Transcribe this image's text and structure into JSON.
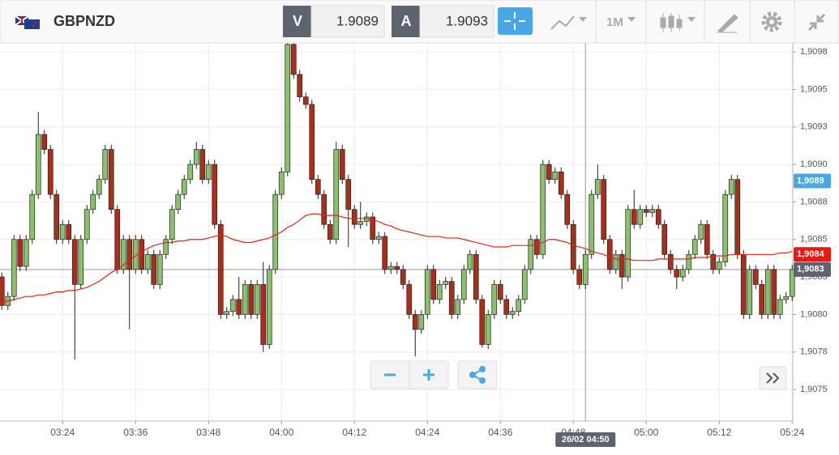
{
  "toolbar": {
    "symbol": "GBPNZD",
    "bid_label": "V",
    "bid": "1.9089",
    "ask_label": "A",
    "ask": "1.9093",
    "timeframe": "1M"
  },
  "chart_data": {
    "type": "candlestick",
    "up_color": "#8cbf6e",
    "down_color": "#a3311c",
    "x": [
      194,
      195,
      196,
      197,
      198,
      199,
      200,
      201,
      202,
      203,
      204,
      205,
      206,
      207,
      208,
      209,
      210,
      211,
      212,
      213,
      214,
      215,
      216,
      217,
      218,
      219,
      220,
      221,
      222,
      223,
      224,
      225,
      226,
      227,
      228,
      229,
      230,
      231,
      232,
      233,
      234,
      235,
      236,
      237,
      238,
      239,
      240,
      241,
      242,
      243,
      244,
      245,
      246,
      247,
      248,
      249,
      250,
      251,
      252,
      253,
      254,
      255,
      256,
      257,
      258,
      259,
      260,
      261,
      262,
      263,
      264,
      265,
      266,
      267,
      268,
      269,
      270,
      271,
      272,
      273,
      274,
      275,
      276,
      277,
      278,
      279,
      280,
      281,
      282,
      283,
      284,
      285,
      286,
      287,
      288,
      289,
      290,
      291,
      292,
      293,
      294,
      295,
      296,
      297,
      298,
      299,
      300,
      301,
      302,
      303,
      304,
      305,
      306,
      307,
      308,
      309,
      310,
      311,
      312,
      313,
      314,
      315,
      316,
      317,
      318,
      319,
      320,
      321,
      322,
      323,
      324
    ],
    "candles": [
      [
        1.90825,
        1.90828,
        1.90803,
        1.90806
      ],
      [
        1.90806,
        1.90815,
        1.90803,
        1.90812
      ],
      [
        1.90812,
        1.90853,
        1.90809,
        1.9085
      ],
      [
        1.9085,
        1.90853,
        1.90829,
        1.90832
      ],
      [
        1.90832,
        1.90853,
        1.90829,
        1.9085
      ],
      [
        1.9085,
        1.90883,
        1.90847,
        1.9088
      ],
      [
        1.9088,
        1.90935,
        1.90877,
        1.9092
      ],
      [
        1.9092,
        1.90923,
        1.90907,
        1.9091
      ],
      [
        1.9091,
        1.90913,
        1.90877,
        1.9088
      ],
      [
        1.9088,
        1.90883,
        1.90847,
        1.9085
      ],
      [
        1.9085,
        1.90863,
        1.90847,
        1.9086
      ],
      [
        1.9086,
        1.90863,
        1.90847,
        1.9085
      ],
      [
        1.9085,
        1.90853,
        1.9077,
        1.9082
      ],
      [
        1.9082,
        1.90853,
        1.90817,
        1.9085
      ],
      [
        1.9085,
        1.90873,
        1.90847,
        1.9087
      ],
      [
        1.9087,
        1.90883,
        1.90867,
        1.9088
      ],
      [
        1.9088,
        1.90893,
        1.90877,
        1.9089
      ],
      [
        1.9089,
        1.90913,
        1.90887,
        1.9091
      ],
      [
        1.9091,
        1.90913,
        1.90867,
        1.9087
      ],
      [
        1.9087,
        1.90873,
        1.90827,
        1.9083
      ],
      [
        1.9083,
        1.90853,
        1.90827,
        1.9085
      ],
      [
        1.9085,
        1.90853,
        1.9079,
        1.9083
      ],
      [
        1.9083,
        1.90853,
        1.90827,
        1.9085
      ],
      [
        1.9085,
        1.90853,
        1.90827,
        1.9083
      ],
      [
        1.9083,
        1.90843,
        1.90827,
        1.9084
      ],
      [
        1.9084,
        1.90843,
        1.90817,
        1.9082
      ],
      [
        1.9082,
        1.90843,
        1.90817,
        1.9084
      ],
      [
        1.9084,
        1.90853,
        1.90837,
        1.9085
      ],
      [
        1.9085,
        1.90873,
        1.90847,
        1.9087
      ],
      [
        1.9087,
        1.90883,
        1.90867,
        1.9088
      ],
      [
        1.9088,
        1.90893,
        1.90877,
        1.9089
      ],
      [
        1.9089,
        1.90903,
        1.90887,
        1.909
      ],
      [
        1.909,
        1.90915,
        1.90897,
        1.9091
      ],
      [
        1.9091,
        1.90913,
        1.90887,
        1.9089
      ],
      [
        1.9089,
        1.90903,
        1.90887,
        1.909
      ],
      [
        1.909,
        1.90903,
        1.90857,
        1.9086
      ],
      [
        1.9086,
        1.90863,
        1.90797,
        1.908
      ],
      [
        1.908,
        1.90805,
        1.90797,
        1.90802
      ],
      [
        1.90802,
        1.90813,
        1.90799,
        1.9081
      ],
      [
        1.9081,
        1.90825,
        1.90797,
        1.908
      ],
      [
        1.908,
        1.90823,
        1.90797,
        1.9082
      ],
      [
        1.9082,
        1.90823,
        1.90797,
        1.908
      ],
      [
        1.908,
        1.90823,
        1.90797,
        1.9082
      ],
      [
        1.9082,
        1.90835,
        1.90775,
        1.9078
      ],
      [
        1.9078,
        1.90833,
        1.90777,
        1.9083
      ],
      [
        1.9083,
        1.90883,
        1.90827,
        1.9088
      ],
      [
        1.9088,
        1.90898,
        1.90877,
        1.90895
      ],
      [
        1.90895,
        1.90985,
        1.90892,
        1.9098
      ],
      [
        1.9098,
        1.90983,
        1.90957,
        1.9096
      ],
      [
        1.9096,
        1.90963,
        1.90942,
        1.90945
      ],
      [
        1.90945,
        1.90948,
        1.90937,
        1.9094
      ],
      [
        1.9094,
        1.90943,
        1.90887,
        1.9089
      ],
      [
        1.9089,
        1.90893,
        1.90877,
        1.9088
      ],
      [
        1.9088,
        1.90883,
        1.90857,
        1.9086
      ],
      [
        1.9086,
        1.90863,
        1.90847,
        1.9085
      ],
      [
        1.9085,
        1.90915,
        1.90847,
        1.9091
      ],
      [
        1.9091,
        1.90913,
        1.90887,
        1.9089
      ],
      [
        1.9089,
        1.90893,
        1.90845,
        1.9087
      ],
      [
        1.9087,
        1.90873,
        1.90857,
        1.9086
      ],
      [
        1.9086,
        1.90875,
        1.90857,
        1.90862
      ],
      [
        1.90862,
        1.90868,
        1.90859,
        1.90865
      ],
      [
        1.90865,
        1.90868,
        1.90847,
        1.9085
      ],
      [
        1.9085,
        1.90855,
        1.90847,
        1.90852
      ],
      [
        1.90852,
        1.90855,
        1.90827,
        1.9083
      ],
      [
        1.9083,
        1.90835,
        1.90827,
        1.90832
      ],
      [
        1.90832,
        1.90835,
        1.90827,
        1.9083
      ],
      [
        1.9083,
        1.90833,
        1.90817,
        1.9082
      ],
      [
        1.9082,
        1.90823,
        1.90797,
        1.908
      ],
      [
        1.908,
        1.90803,
        1.90772,
        1.9079
      ],
      [
        1.9079,
        1.90803,
        1.90787,
        1.908
      ],
      [
        1.908,
        1.90833,
        1.90797,
        1.9083
      ],
      [
        1.9083,
        1.90833,
        1.90807,
        1.9081
      ],
      [
        1.9081,
        1.90823,
        1.90807,
        1.9082
      ],
      [
        1.9082,
        1.90825,
        1.90817,
        1.90822
      ],
      [
        1.90822,
        1.90825,
        1.90797,
        1.908
      ],
      [
        1.908,
        1.90813,
        1.90797,
        1.9081
      ],
      [
        1.9081,
        1.90833,
        1.90807,
        1.9083
      ],
      [
        1.9083,
        1.90843,
        1.90827,
        1.9084
      ],
      [
        1.9084,
        1.90843,
        1.90807,
        1.9081
      ],
      [
        1.9081,
        1.90813,
        1.90778,
        1.9078
      ],
      [
        1.9078,
        1.90803,
        1.90777,
        1.908
      ],
      [
        1.908,
        1.90823,
        1.90797,
        1.9082
      ],
      [
        1.9082,
        1.90823,
        1.90807,
        1.9081
      ],
      [
        1.9081,
        1.90813,
        1.90797,
        1.908
      ],
      [
        1.908,
        1.90805,
        1.90797,
        1.90802
      ],
      [
        1.90802,
        1.90813,
        1.90799,
        1.9081
      ],
      [
        1.9081,
        1.90833,
        1.90807,
        1.9083
      ],
      [
        1.9083,
        1.90853,
        1.90827,
        1.9085
      ],
      [
        1.9085,
        1.90853,
        1.90837,
        1.9084
      ],
      [
        1.9084,
        1.90903,
        1.90837,
        1.909
      ],
      [
        1.909,
        1.90903,
        1.90887,
        1.9089
      ],
      [
        1.9089,
        1.90898,
        1.90887,
        1.90895
      ],
      [
        1.90895,
        1.90898,
        1.90877,
        1.9088
      ],
      [
        1.9088,
        1.90883,
        1.90857,
        1.9086
      ],
      [
        1.9086,
        1.90863,
        1.90827,
        1.9083
      ],
      [
        1.9083,
        1.90833,
        1.90817,
        1.9082
      ],
      [
        1.9082,
        1.90843,
        1.90817,
        1.9084
      ],
      [
        1.9084,
        1.90883,
        1.90837,
        1.9088
      ],
      [
        1.9088,
        1.909,
        1.90877,
        1.9089
      ],
      [
        1.9089,
        1.90893,
        1.90847,
        1.9085
      ],
      [
        1.9085,
        1.90853,
        1.90827,
        1.9083
      ],
      [
        1.9083,
        1.90843,
        1.90827,
        1.9084
      ],
      [
        1.9084,
        1.90843,
        1.90817,
        1.90825
      ],
      [
        1.90825,
        1.90873,
        1.90822,
        1.9087
      ],
      [
        1.9087,
        1.90883,
        1.90857,
        1.9086
      ],
      [
        1.9086,
        1.90873,
        1.90857,
        1.9087
      ],
      [
        1.9087,
        1.90873,
        1.90865,
        1.90868
      ],
      [
        1.90868,
        1.90873,
        1.90865,
        1.9087
      ],
      [
        1.9087,
        1.90873,
        1.90857,
        1.9086
      ],
      [
        1.9086,
        1.90863,
        1.90837,
        1.9084
      ],
      [
        1.9084,
        1.90843,
        1.90827,
        1.9083
      ],
      [
        1.9083,
        1.90833,
        1.90817,
        1.90825
      ],
      [
        1.90825,
        1.90833,
        1.90822,
        1.9083
      ],
      [
        1.9083,
        1.90843,
        1.90827,
        1.9084
      ],
      [
        1.9084,
        1.90853,
        1.90837,
        1.9085
      ],
      [
        1.9085,
        1.90863,
        1.90847,
        1.9086
      ],
      [
        1.9086,
        1.90863,
        1.90837,
        1.9084
      ],
      [
        1.9084,
        1.90843,
        1.90827,
        1.9083
      ],
      [
        1.9083,
        1.90838,
        1.90827,
        1.90835
      ],
      [
        1.90835,
        1.90883,
        1.90832,
        1.9088
      ],
      [
        1.9088,
        1.90893,
        1.90877,
        1.9089
      ],
      [
        1.9089,
        1.90893,
        1.90837,
        1.9084
      ],
      [
        1.9084,
        1.90843,
        1.90797,
        1.908
      ],
      [
        1.908,
        1.90833,
        1.90797,
        1.9083
      ],
      [
        1.9083,
        1.90833,
        1.90817,
        1.9082
      ],
      [
        1.9082,
        1.90823,
        1.90797,
        1.908
      ],
      [
        1.908,
        1.90833,
        1.90797,
        1.9083
      ],
      [
        1.9083,
        1.90833,
        1.90797,
        1.908
      ],
      [
        1.908,
        1.90813,
        1.90797,
        1.9081
      ],
      [
        1.9081,
        1.90815,
        1.90807,
        1.90812
      ],
      [
        1.90812,
        1.90833,
        1.90809,
        1.9083
      ]
    ],
    "ma": {
      "color": "#e0241c",
      "values": [
        1.90808,
        1.90809,
        1.9081,
        1.90811,
        1.90812,
        1.90812,
        1.90813,
        1.90813,
        1.90814,
        1.90815,
        1.90815,
        1.90816,
        1.90816,
        1.90817,
        1.90818,
        1.9082,
        1.90822,
        1.90825,
        1.90828,
        1.9083,
        1.90833,
        1.90836,
        1.90839,
        1.90842,
        1.90844,
        1.90846,
        1.90847,
        1.90848,
        1.90848,
        1.90849,
        1.90849,
        1.9085,
        1.9085,
        1.9085,
        1.90851,
        1.90852,
        1.90853,
        1.90852,
        1.9085,
        1.90849,
        1.90848,
        1.90848,
        1.90849,
        1.9085,
        1.90851,
        1.90853,
        1.90855,
        1.90858,
        1.9086,
        1.90863,
        1.90866,
        1.90867,
        1.90867,
        1.90866,
        1.90866,
        1.90866,
        1.90865,
        1.90864,
        1.90864,
        1.90864,
        1.90864,
        1.90863,
        1.90862,
        1.9086,
        1.90859,
        1.90857,
        1.90856,
        1.90855,
        1.90854,
        1.90853,
        1.90852,
        1.90852,
        1.90852,
        1.90851,
        1.90851,
        1.90851,
        1.9085,
        1.90849,
        1.90848,
        1.90847,
        1.90846,
        1.90845,
        1.90845,
        1.90845,
        1.90846,
        1.90846,
        1.90846,
        1.90846,
        1.90847,
        1.90848,
        1.9085,
        1.9085,
        1.90849,
        1.90848,
        1.90846,
        1.90845,
        1.90844,
        1.90842,
        1.90841,
        1.9084,
        1.90838,
        1.90837,
        1.90837,
        1.90837,
        1.90836,
        1.90836,
        1.90836,
        1.90836,
        1.90837,
        1.90837,
        1.90837,
        1.90837,
        1.90837,
        1.90837,
        1.90838,
        1.90838,
        1.90838,
        1.90839,
        1.90839,
        1.90839,
        1.9084,
        1.9084,
        1.9084,
        1.9084,
        1.9084,
        1.9084,
        1.9084,
        1.9084,
        1.90841,
        1.90841,
        1.90842
      ]
    },
    "xlim": [
      193.7,
      324.1
    ],
    "xticks": [
      {
        "value": 204,
        "label": "03:24"
      },
      {
        "value": 216,
        "label": "03:36"
      },
      {
        "value": 228,
        "label": "03:48"
      },
      {
        "value": 240,
        "label": "04:00"
      },
      {
        "value": 252,
        "label": "04:12"
      },
      {
        "value": 264,
        "label": "04:24"
      },
      {
        "value": 276,
        "label": "04:36"
      },
      {
        "value": 288,
        "label": "04:48"
      },
      {
        "value": 300,
        "label": "05:00"
      },
      {
        "value": 312,
        "label": "05:12"
      },
      {
        "value": 324,
        "label": "05:24"
      }
    ],
    "ylim": [
      1.90729,
      1.90981
    ],
    "yticks": [
      {
        "value": 1.90975,
        "label": "1,9098"
      },
      {
        "value": 1.9095,
        "label": "1,9095"
      },
      {
        "value": 1.90925,
        "label": "1,9093"
      },
      {
        "value": 1.909,
        "label": "1,9090"
      },
      {
        "value": 1.90875,
        "label": "1,9088"
      },
      {
        "value": 1.9085,
        "label": "1,9085"
      },
      {
        "value": 1.90825,
        "label": "1,9083"
      },
      {
        "value": 1.908,
        "label": "1,9080"
      },
      {
        "value": 1.90775,
        "label": "1,9078"
      },
      {
        "value": 1.9075,
        "label": "1,9075"
      }
    ],
    "grid": true,
    "price_tags": [
      {
        "value": 1.90889,
        "label": "1,9089",
        "color": "#4aa8e0"
      },
      {
        "value": 1.9084,
        "label": "1,9084",
        "color": "#e8190f"
      }
    ],
    "crosshair": {
      "x": 290,
      "x_label": "26/02 04:50",
      "y": 1.9083,
      "y_label": "1,9083"
    }
  }
}
